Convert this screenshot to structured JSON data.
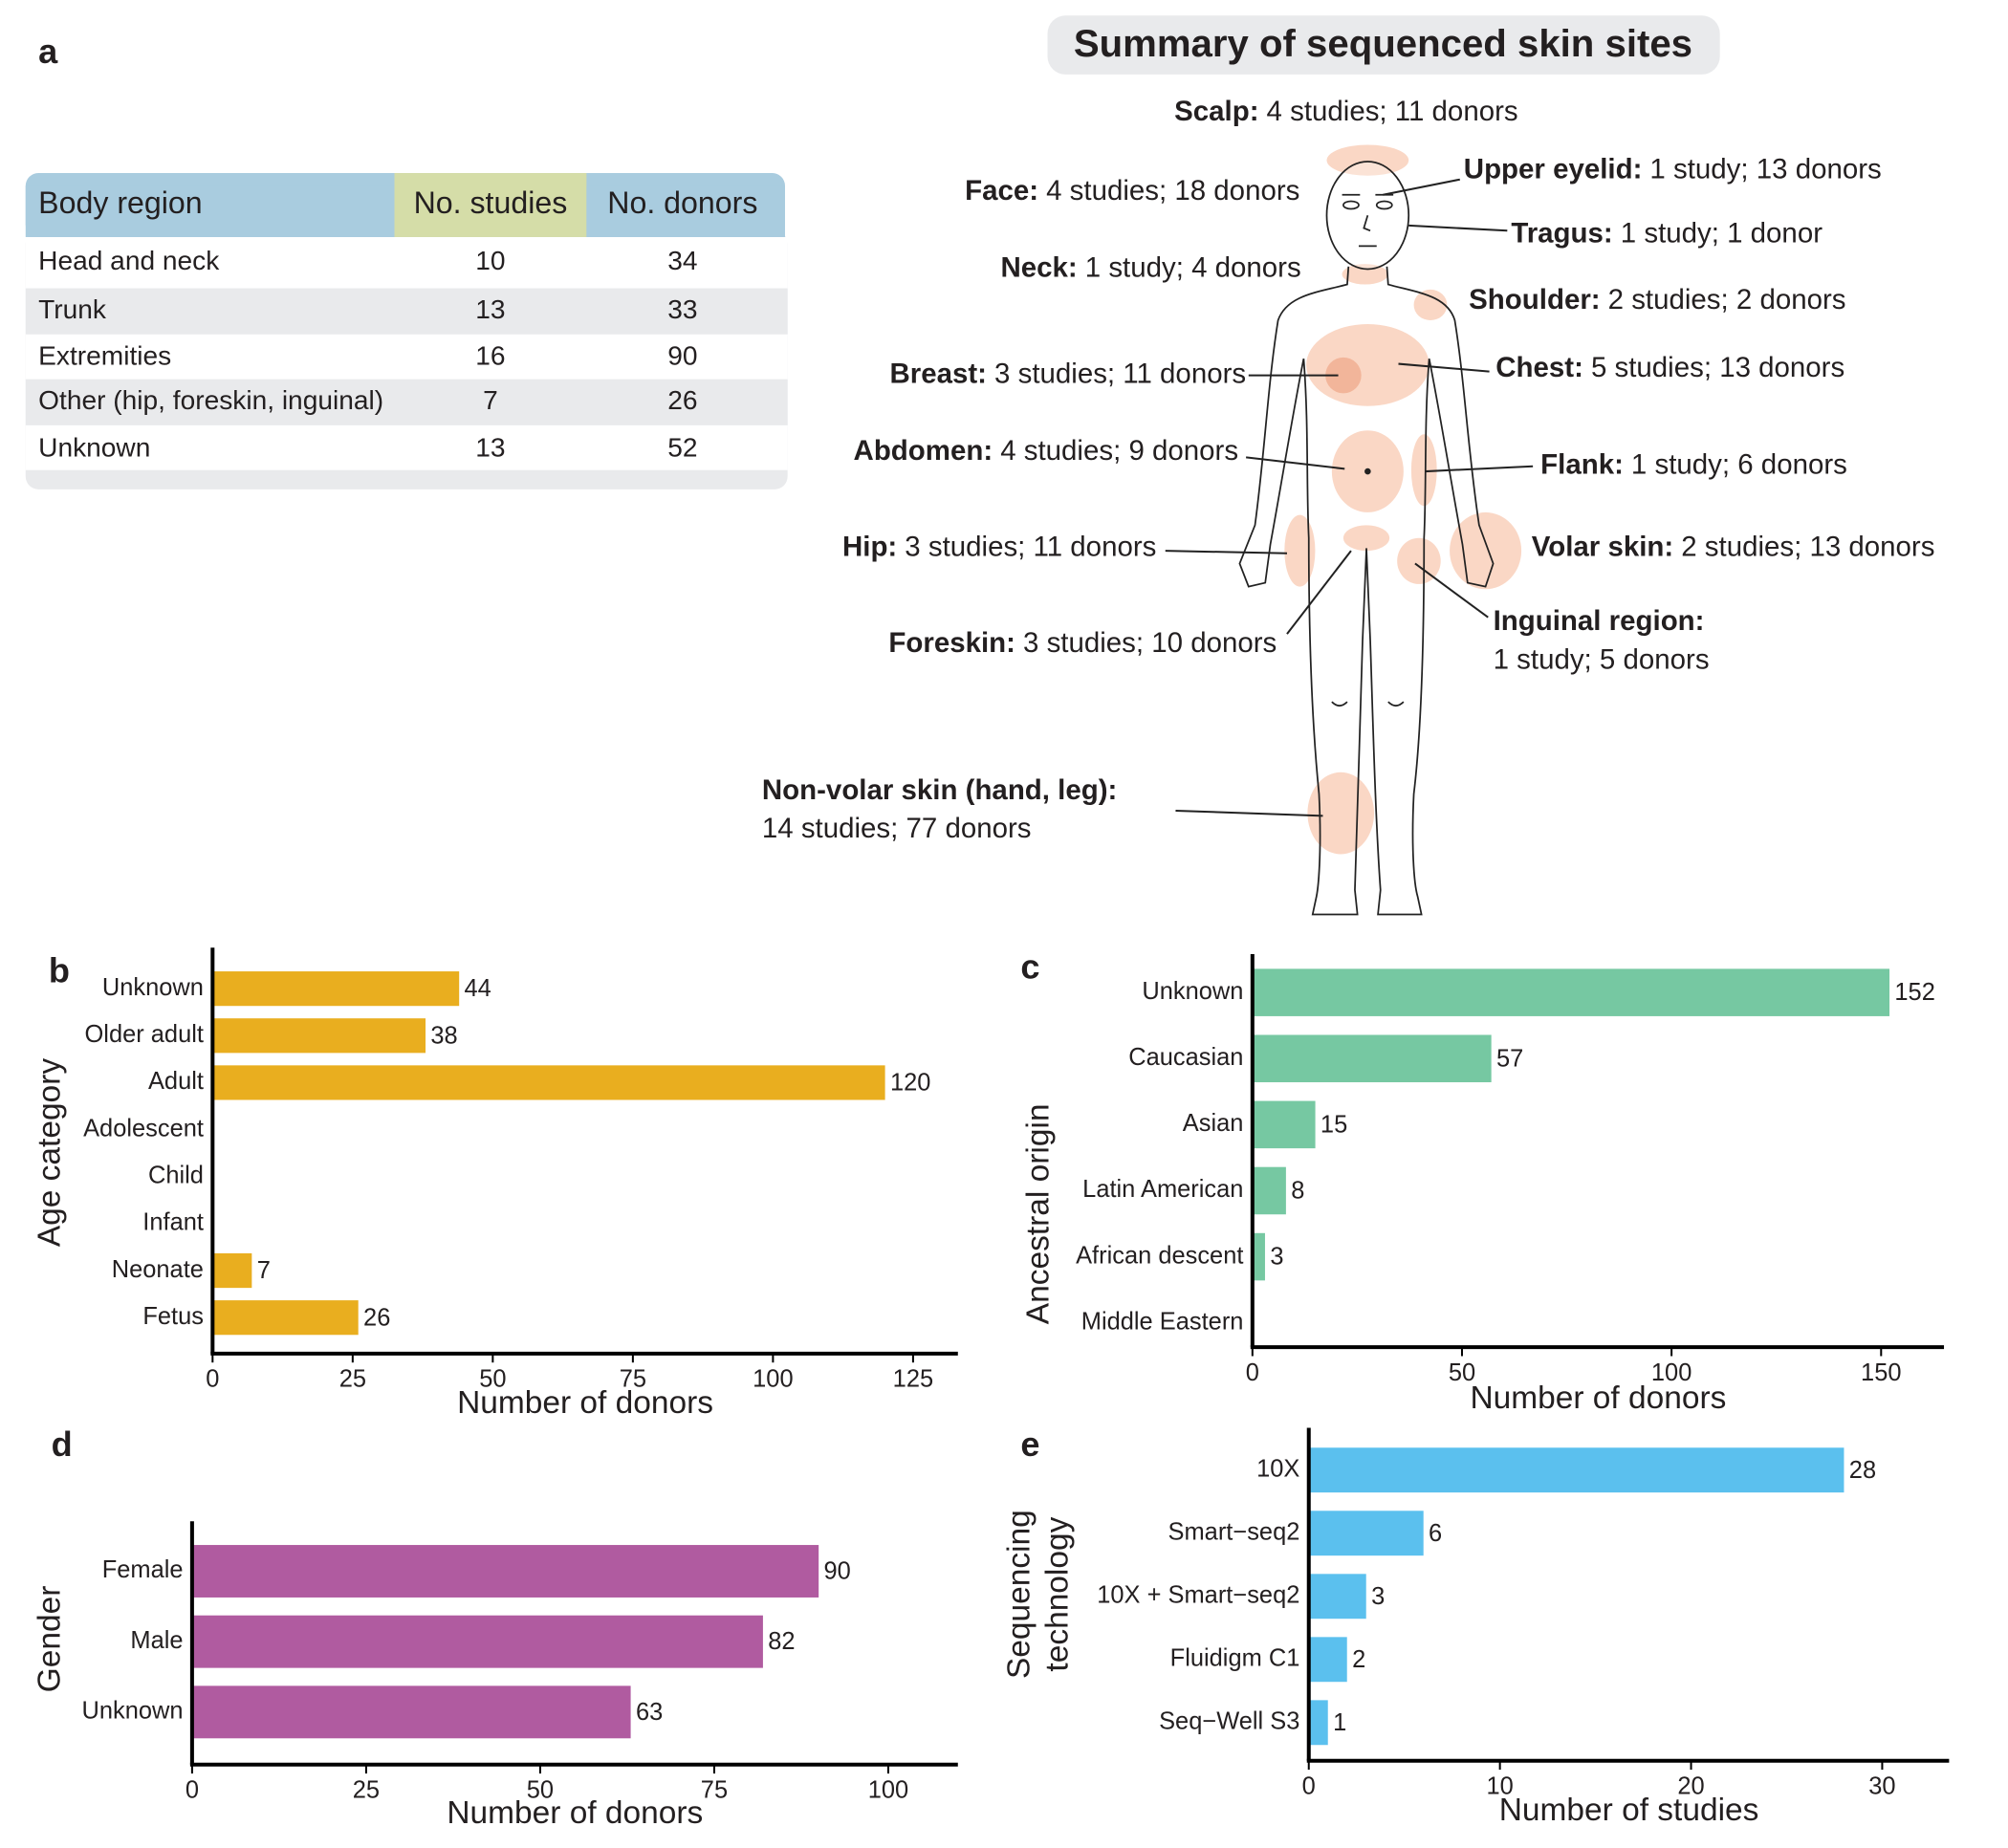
{
  "panels": [
    "a",
    "b",
    "c",
    "d",
    "e"
  ],
  "table": {
    "columns": [
      "Body region",
      "No. studies",
      "No. donors"
    ],
    "rows": [
      [
        "Head and neck",
        10,
        34
      ],
      [
        "Trunk",
        13,
        33
      ],
      [
        "Extremities",
        16,
        90
      ],
      [
        "Other (hip, foreskin, inguinal)",
        7,
        26
      ],
      [
        "Unknown",
        13,
        52
      ]
    ]
  },
  "body_map": {
    "title": "Summary of sequenced skin sites",
    "sites": [
      {
        "name": "Scalp:",
        "detail": "4 studies; 11 donors"
      },
      {
        "name": "Upper eyelid:",
        "detail": "1 study; 13 donors"
      },
      {
        "name": "Face:",
        "detail": "4 studies; 18 donors"
      },
      {
        "name": "Tragus:",
        "detail": "1 study; 1 donor"
      },
      {
        "name": "Neck:",
        "detail": "1 study; 4 donors"
      },
      {
        "name": "Shoulder:",
        "detail": "2 studies; 2 donors"
      },
      {
        "name": "Breast:",
        "detail": "3 studies; 11 donors"
      },
      {
        "name": "Chest:",
        "detail": "5 studies; 13 donors"
      },
      {
        "name": "Abdomen:",
        "detail": "4 studies; 9 donors"
      },
      {
        "name": "Flank:",
        "detail": "1 study; 6 donors"
      },
      {
        "name": "Hip:",
        "detail": "3 studies; 11 donors"
      },
      {
        "name": "Volar skin:",
        "detail": "2 studies; 13 donors"
      },
      {
        "name": "Inguinal region:",
        "detail": "1 study; 5 donors"
      },
      {
        "name": "Foreskin:",
        "detail": "3 studies; 10 donors"
      },
      {
        "name": "Non-volar skin (hand, leg):",
        "detail": "14 studies; 77 donors"
      }
    ]
  },
  "chart_data": [
    {
      "type": "bar",
      "orientation": "horizontal",
      "xlabel": "Number of donors",
      "ylabel": [
        "Age category"
      ],
      "categories": [
        "Unknown",
        "Older adult",
        "Adult",
        "Adolescent",
        "Child",
        "Infant",
        "Neonate",
        "Fetus"
      ],
      "values": [
        44,
        38,
        120,
        0,
        0,
        0,
        7,
        26
      ],
      "color": "#e9ae1f",
      "xlim": [
        0,
        133
      ],
      "xticks": [
        0,
        25,
        50,
        75,
        100,
        125
      ]
    },
    {
      "type": "bar",
      "orientation": "horizontal",
      "xlabel": "Number of donors",
      "ylabel": [
        "Ancestral origin"
      ],
      "categories": [
        "Unknown",
        "Caucasian",
        "Asian",
        "Latin American",
        "African descent",
        "Middle Eastern"
      ],
      "values": [
        152,
        57,
        15,
        8,
        3,
        0
      ],
      "color": "#76c8a2",
      "xlim": [
        0,
        165
      ],
      "xticks": [
        0,
        50,
        100,
        150
      ]
    },
    {
      "type": "bar",
      "orientation": "horizontal",
      "xlabel": "Number of donors",
      "ylabel": [
        "Gender"
      ],
      "categories": [
        "Female",
        "Male",
        "Unknown"
      ],
      "values": [
        90,
        82,
        63
      ],
      "color": "#b05ba0",
      "xlim": [
        0,
        110
      ],
      "xticks": [
        0,
        25,
        50,
        75,
        100
      ]
    },
    {
      "type": "bar",
      "orientation": "horizontal",
      "xlabel": "Number of studies",
      "ylabel": [
        "Sequencing",
        "technology"
      ],
      "categories": [
        "10X",
        "Smart−seq2",
        "10X + Smart−seq2",
        "Fluidigm C1",
        "Seq−Well S3"
      ],
      "values": [
        28,
        6,
        3,
        2,
        1
      ],
      "color": "#5bc0ee",
      "xlim": [
        0,
        33.5
      ],
      "xticks": [
        0,
        10,
        20,
        30
      ]
    }
  ]
}
